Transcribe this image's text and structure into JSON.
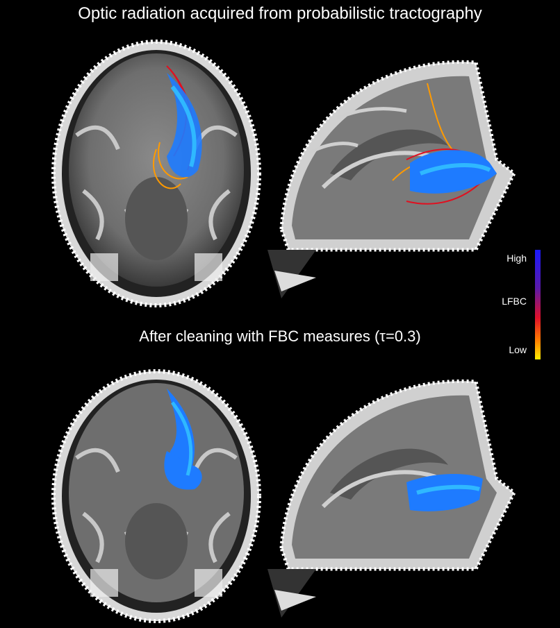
{
  "titles": {
    "top": "Optic radiation acquired from probabilistic tractography",
    "bottom": "After cleaning with FBC measures (τ=0.3)"
  },
  "legend": {
    "high": "High",
    "measure": "LFBC",
    "low": "Low",
    "colors": [
      "#1a1aff",
      "#5a1aa8",
      "#e0102a",
      "#ff7a00",
      "#ffee00"
    ]
  },
  "panels": [
    {
      "view": "axial",
      "state": "before cleaning",
      "fiber_colors": [
        "#1e7bff",
        "#e01020",
        "#ff9a00"
      ]
    },
    {
      "view": "sagittal",
      "state": "before cleaning",
      "fiber_colors": [
        "#1e7bff",
        "#e01020",
        "#ff9a00"
      ]
    },
    {
      "view": "axial",
      "state": "after cleaning",
      "fiber_colors": [
        "#1e7bff",
        "#2fb8ff"
      ]
    },
    {
      "view": "sagittal",
      "state": "after cleaning",
      "fiber_colors": [
        "#1e7bff",
        "#2fb8ff"
      ]
    }
  ]
}
